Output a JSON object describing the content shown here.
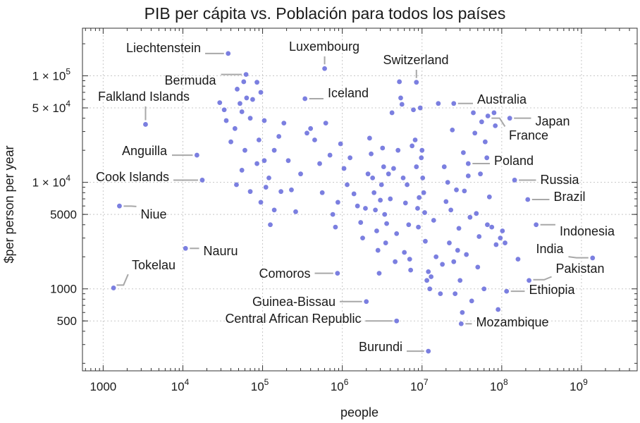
{
  "chart_data": {
    "type": "scatter",
    "title": "PIB per cápita vs. Población para todos los países",
    "xlabel": "people",
    "ylabel": "$per person per year",
    "x_scale": "log",
    "y_scale": "log",
    "xlim": [
      550,
      5000000000
    ],
    "ylim": [
      170,
      280000
    ],
    "grid": true,
    "x_ticks": [
      {
        "value": 1000,
        "label": "1000"
      },
      {
        "value": 10000,
        "label": "10",
        "sup": "4"
      },
      {
        "value": 100000,
        "label": "10",
        "sup": "5"
      },
      {
        "value": 1000000,
        "label": "10",
        "sup": "6"
      },
      {
        "value": 10000000,
        "label": "10",
        "sup": "7"
      },
      {
        "value": 100000000,
        "label": "10",
        "sup": "8"
      },
      {
        "value": 1000000000,
        "label": "10",
        "sup": "9"
      }
    ],
    "y_ticks": [
      {
        "value": 500,
        "label": "500"
      },
      {
        "value": 1000,
        "label": "1000"
      },
      {
        "value": 5000,
        "label": "5000"
      },
      {
        "value": 10000,
        "label": "1 × 10",
        "sup": "4"
      },
      {
        "value": 50000,
        "label": "5 × 10",
        "sup": "4"
      },
      {
        "value": 100000,
        "label": "1 × 10",
        "sup": "5"
      }
    ],
    "point_color": "#7b7fe0",
    "labeled_points": [
      {
        "name": "Liechtenstein",
        "x": 37000,
        "y": 162000
      },
      {
        "name": "Luxembourg",
        "x": 600000,
        "y": 117000
      },
      {
        "name": "Switzerland",
        "x": 8500000,
        "y": 87000
      },
      {
        "name": "Bermuda",
        "x": 62000,
        "y": 103000
      },
      {
        "name": "Iceland",
        "x": 340000,
        "y": 61000
      },
      {
        "name": "Australia",
        "x": 25000000,
        "y": 55000
      },
      {
        "name": "Falkland Islands",
        "x": 3400,
        "y": 35000
      },
      {
        "name": "Japan",
        "x": 126000000,
        "y": 40000
      },
      {
        "name": "France",
        "x": 67000000,
        "y": 42000
      },
      {
        "name": "Anguilla",
        "x": 15000,
        "y": 18000
      },
      {
        "name": "Poland",
        "x": 38000000,
        "y": 15000
      },
      {
        "name": "Cook Islands",
        "x": 17500,
        "y": 10500
      },
      {
        "name": "Russia",
        "x": 145000000,
        "y": 10500
      },
      {
        "name": "Brazil",
        "x": 212000000,
        "y": 6900
      },
      {
        "name": "Niue",
        "x": 1600,
        "y": 6000
      },
      {
        "name": "Indonesia",
        "x": 270000000,
        "y": 4000
      },
      {
        "name": "Nauru",
        "x": 10800,
        "y": 2400
      },
      {
        "name": "India",
        "x": 1380000000,
        "y": 1950
      },
      {
        "name": "Tokelau",
        "x": 1350,
        "y": 1020
      },
      {
        "name": "Comoros",
        "x": 870000,
        "y": 1400
      },
      {
        "name": "Pakistan",
        "x": 220000000,
        "y": 1200
      },
      {
        "name": "Ethiopia",
        "x": 115000000,
        "y": 950
      },
      {
        "name": "Guinea-Bissau",
        "x": 2000000,
        "y": 760
      },
      {
        "name": "Central African Republic",
        "x": 4800000,
        "y": 500
      },
      {
        "name": "Mozambique",
        "x": 31000000,
        "y": 470
      },
      {
        "name": "Burundi",
        "x": 12000000,
        "y": 260
      }
    ],
    "other_points": [
      [
        29000,
        56000
      ],
      [
        33000,
        48000
      ],
      [
        35000,
        38000
      ],
      [
        48000,
        75000
      ],
      [
        52000,
        55000
      ],
      [
        55000,
        46000
      ],
      [
        58000,
        88000
      ],
      [
        63000,
        62000
      ],
      [
        70000,
        40000
      ],
      [
        75000,
        60000
      ],
      [
        85000,
        87000
      ],
      [
        95000,
        70000
      ],
      [
        105000,
        38000
      ],
      [
        90000,
        25000
      ],
      [
        85000,
        15000
      ],
      [
        60000,
        20000
      ],
      [
        45000,
        32000
      ],
      [
        40000,
        24000
      ],
      [
        55000,
        13000
      ],
      [
        47000,
        9500
      ],
      [
        70000,
        8200
      ],
      [
        120000,
        11000
      ],
      [
        105000,
        16000
      ],
      [
        140000,
        20000
      ],
      [
        160000,
        27000
      ],
      [
        110000,
        9000
      ],
      [
        95000,
        6500
      ],
      [
        125000,
        4000
      ],
      [
        140000,
        5500
      ],
      [
        170000,
        8200
      ],
      [
        185000,
        36000
      ],
      [
        210000,
        16000
      ],
      [
        230000,
        8500
      ],
      [
        260000,
        5300
      ],
      [
        300000,
        12000
      ],
      [
        360000,
        29000
      ],
      [
        400000,
        32000
      ],
      [
        450000,
        25000
      ],
      [
        520000,
        15000
      ],
      [
        560000,
        8000
      ],
      [
        620000,
        36000
      ],
      [
        700000,
        18000
      ],
      [
        760000,
        5000
      ],
      [
        820000,
        3800
      ],
      [
        880000,
        6500
      ],
      [
        950000,
        23000
      ],
      [
        1050000,
        13500
      ],
      [
        1150000,
        9500
      ],
      [
        1250000,
        17000
      ],
      [
        1400000,
        7800
      ],
      [
        1550000,
        6000
      ],
      [
        1700000,
        4200
      ],
      [
        1800000,
        3000
      ],
      [
        1950000,
        5700
      ],
      [
        2100000,
        12000
      ],
      [
        2200000,
        26000
      ],
      [
        2300000,
        18500
      ],
      [
        2400000,
        11000
      ],
      [
        2500000,
        8000
      ],
      [
        2600000,
        5500
      ],
      [
        2700000,
        3500
      ],
      [
        2800000,
        2300
      ],
      [
        2900000,
        1400
      ],
      [
        3000000,
        6800
      ],
      [
        3100000,
        9500
      ],
      [
        3200000,
        21000
      ],
      [
        3300000,
        14000
      ],
      [
        3400000,
        5000
      ],
      [
        3500000,
        2700
      ],
      [
        3600000,
        4100
      ],
      [
        3800000,
        12000
      ],
      [
        4000000,
        7000
      ],
      [
        4200000,
        45000
      ],
      [
        4400000,
        13500
      ],
      [
        4600000,
        1800
      ],
      [
        4800000,
        3300
      ],
      [
        5000000,
        20000
      ],
      [
        5200000,
        88000
      ],
      [
        5400000,
        62000
      ],
      [
        5600000,
        54000
      ],
      [
        5800000,
        11000
      ],
      [
        6000000,
        2200
      ],
      [
        6200000,
        6400
      ],
      [
        6500000,
        9500
      ],
      [
        6800000,
        4000
      ],
      [
        7000000,
        1900
      ],
      [
        7200000,
        1500
      ],
      [
        7500000,
        22000
      ],
      [
        7800000,
        48000
      ],
      [
        8200000,
        25000
      ],
      [
        8500000,
        14000
      ],
      [
        8800000,
        5700
      ],
      [
        9000000,
        3800
      ],
      [
        9200000,
        7200
      ],
      [
        9500000,
        50000
      ],
      [
        9800000,
        17000
      ],
      [
        10000000,
        20000
      ],
      [
        10200000,
        11000
      ],
      [
        10500000,
        8000
      ],
      [
        10800000,
        5200
      ],
      [
        11000000,
        2800
      ],
      [
        11500000,
        1200
      ],
      [
        12000000,
        1450
      ],
      [
        12500000,
        1000
      ],
      [
        13000000,
        1300
      ],
      [
        14000000,
        4400
      ],
      [
        15000000,
        2000
      ],
      [
        16000000,
        55000
      ],
      [
        17000000,
        900
      ],
      [
        18000000,
        1700
      ],
      [
        19000000,
        14000
      ],
      [
        20000000,
        6600
      ],
      [
        21000000,
        10000
      ],
      [
        22000000,
        2700
      ],
      [
        23000000,
        5500
      ],
      [
        24000000,
        31000
      ],
      [
        25000000,
        1800
      ],
      [
        26000000,
        900
      ],
      [
        27000000,
        8500
      ],
      [
        28000000,
        2300
      ],
      [
        29000000,
        3700
      ],
      [
        30000000,
        1200
      ],
      [
        32000000,
        600
      ],
      [
        33000000,
        19000
      ],
      [
        34000000,
        8300
      ],
      [
        36000000,
        2100
      ],
      [
        38000000,
        11500
      ],
      [
        40000000,
        4700
      ],
      [
        42000000,
        770
      ],
      [
        44000000,
        45000
      ],
      [
        46000000,
        29000
      ],
      [
        48000000,
        5100
      ],
      [
        50000000,
        1600
      ],
      [
        52000000,
        3100
      ],
      [
        54000000,
        12000
      ],
      [
        56000000,
        37000
      ],
      [
        60000000,
        1000
      ],
      [
        62000000,
        24000
      ],
      [
        66000000,
        4000
      ],
      [
        70000000,
        7300
      ],
      [
        75000000,
        3800
      ],
      [
        80000000,
        45000
      ],
      [
        85000000,
        2600
      ],
      [
        90000000,
        640
      ],
      [
        96000000,
        3000
      ],
      [
        102000000,
        3500
      ],
      [
        110000000,
        2700
      ],
      [
        160000000,
        1900
      ],
      [
        83000000,
        34000
      ],
      [
        65000000,
        17000
      ]
    ]
  }
}
